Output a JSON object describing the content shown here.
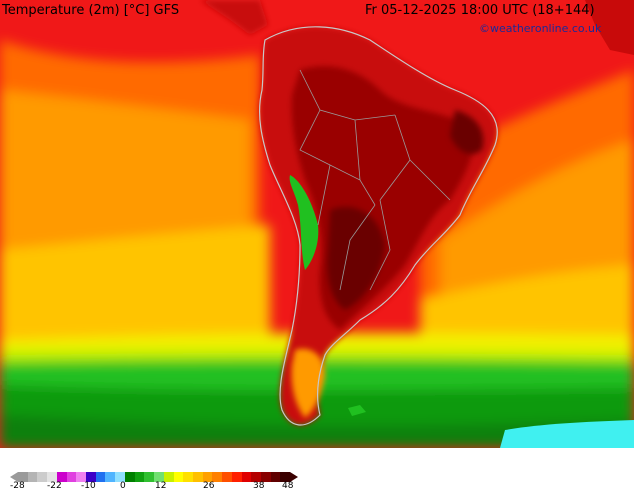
{
  "title": "Temperature (2m) [°C] GFS",
  "datetime": "Fr 05-12-2025 18:00 UTC (18+144)",
  "credit": "©weatheronline.co.uk",
  "legend": {
    "ticks": [
      "-28",
      "-22",
      "-10",
      "0",
      "12",
      "26",
      "38",
      "48"
    ],
    "colors": [
      "#9a9a9a",
      "#b4b4b4",
      "#cccccc",
      "#e4e4e4",
      "#cc00cc",
      "#e040e0",
      "#f080f0",
      "#3c00c8",
      "#2070f0",
      "#50b4ff",
      "#90e0ff",
      "#008000",
      "#10a010",
      "#30c030",
      "#70e070",
      "#c8f000",
      "#ffff00",
      "#ffe000",
      "#ffc000",
      "#ffa000",
      "#ff8000",
      "#ff5000",
      "#ff2000",
      "#e00000",
      "#b40000",
      "#880000",
      "#600000",
      "#3a0000"
    ]
  },
  "map": {
    "region": "South America",
    "colors": {
      "ocean_north": "#f01818",
      "ocean_warm": "#ff6a00",
      "ocean_mid": "#ff9a00",
      "ocean_cool": "#ffc400",
      "ocean_yellow": "#f2f000",
      "ocean_lime": "#bdf000",
      "ocean_green": "#22c022",
      "ocean_darkgreen": "#0a9a0a",
      "ocean_deep": "#078007",
      "antarctic": "#40f0f0",
      "land_hot": "#c80a0a",
      "land_hotter": "#9a0000",
      "land_hottest": "#6a0000",
      "andes_cool": "#20c020",
      "patagonia": "#ff9a00",
      "border": "#9a9a9a",
      "coast": "#c8c8c8"
    }
  }
}
